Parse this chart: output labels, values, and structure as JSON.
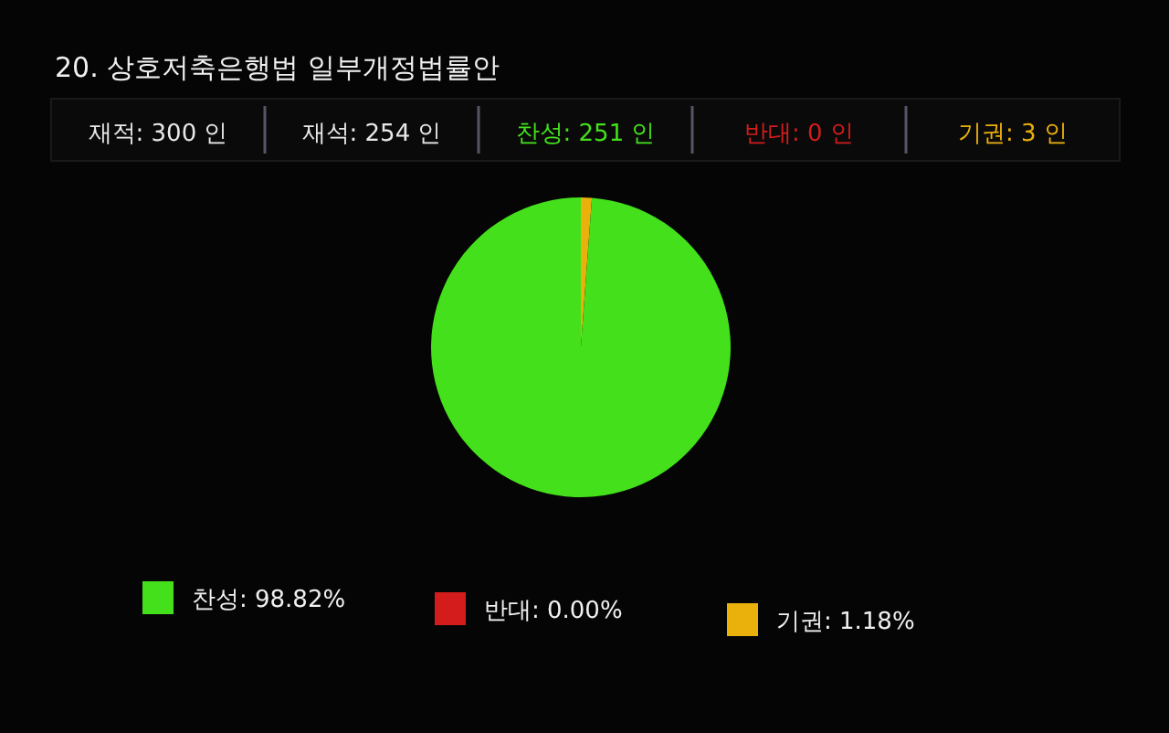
{
  "chart_data": {
    "type": "pie",
    "title": "20. 상호저축은행법 일부개정법률안",
    "annotations": [
      "재적: 300 인",
      "재석: 254 인",
      "찬성: 251 인",
      "반대:  0 인",
      "기권:  3 인"
    ],
    "categories": [
      "찬성: 98.82%",
      "반대: 0.00%",
      "기권: 1.18%"
    ],
    "values": [
      98.82,
      0.0,
      1.18
    ],
    "colors": [
      "#44e01c",
      "#d41c1c",
      "#eab00c"
    ],
    "legend": "bottom"
  }
}
